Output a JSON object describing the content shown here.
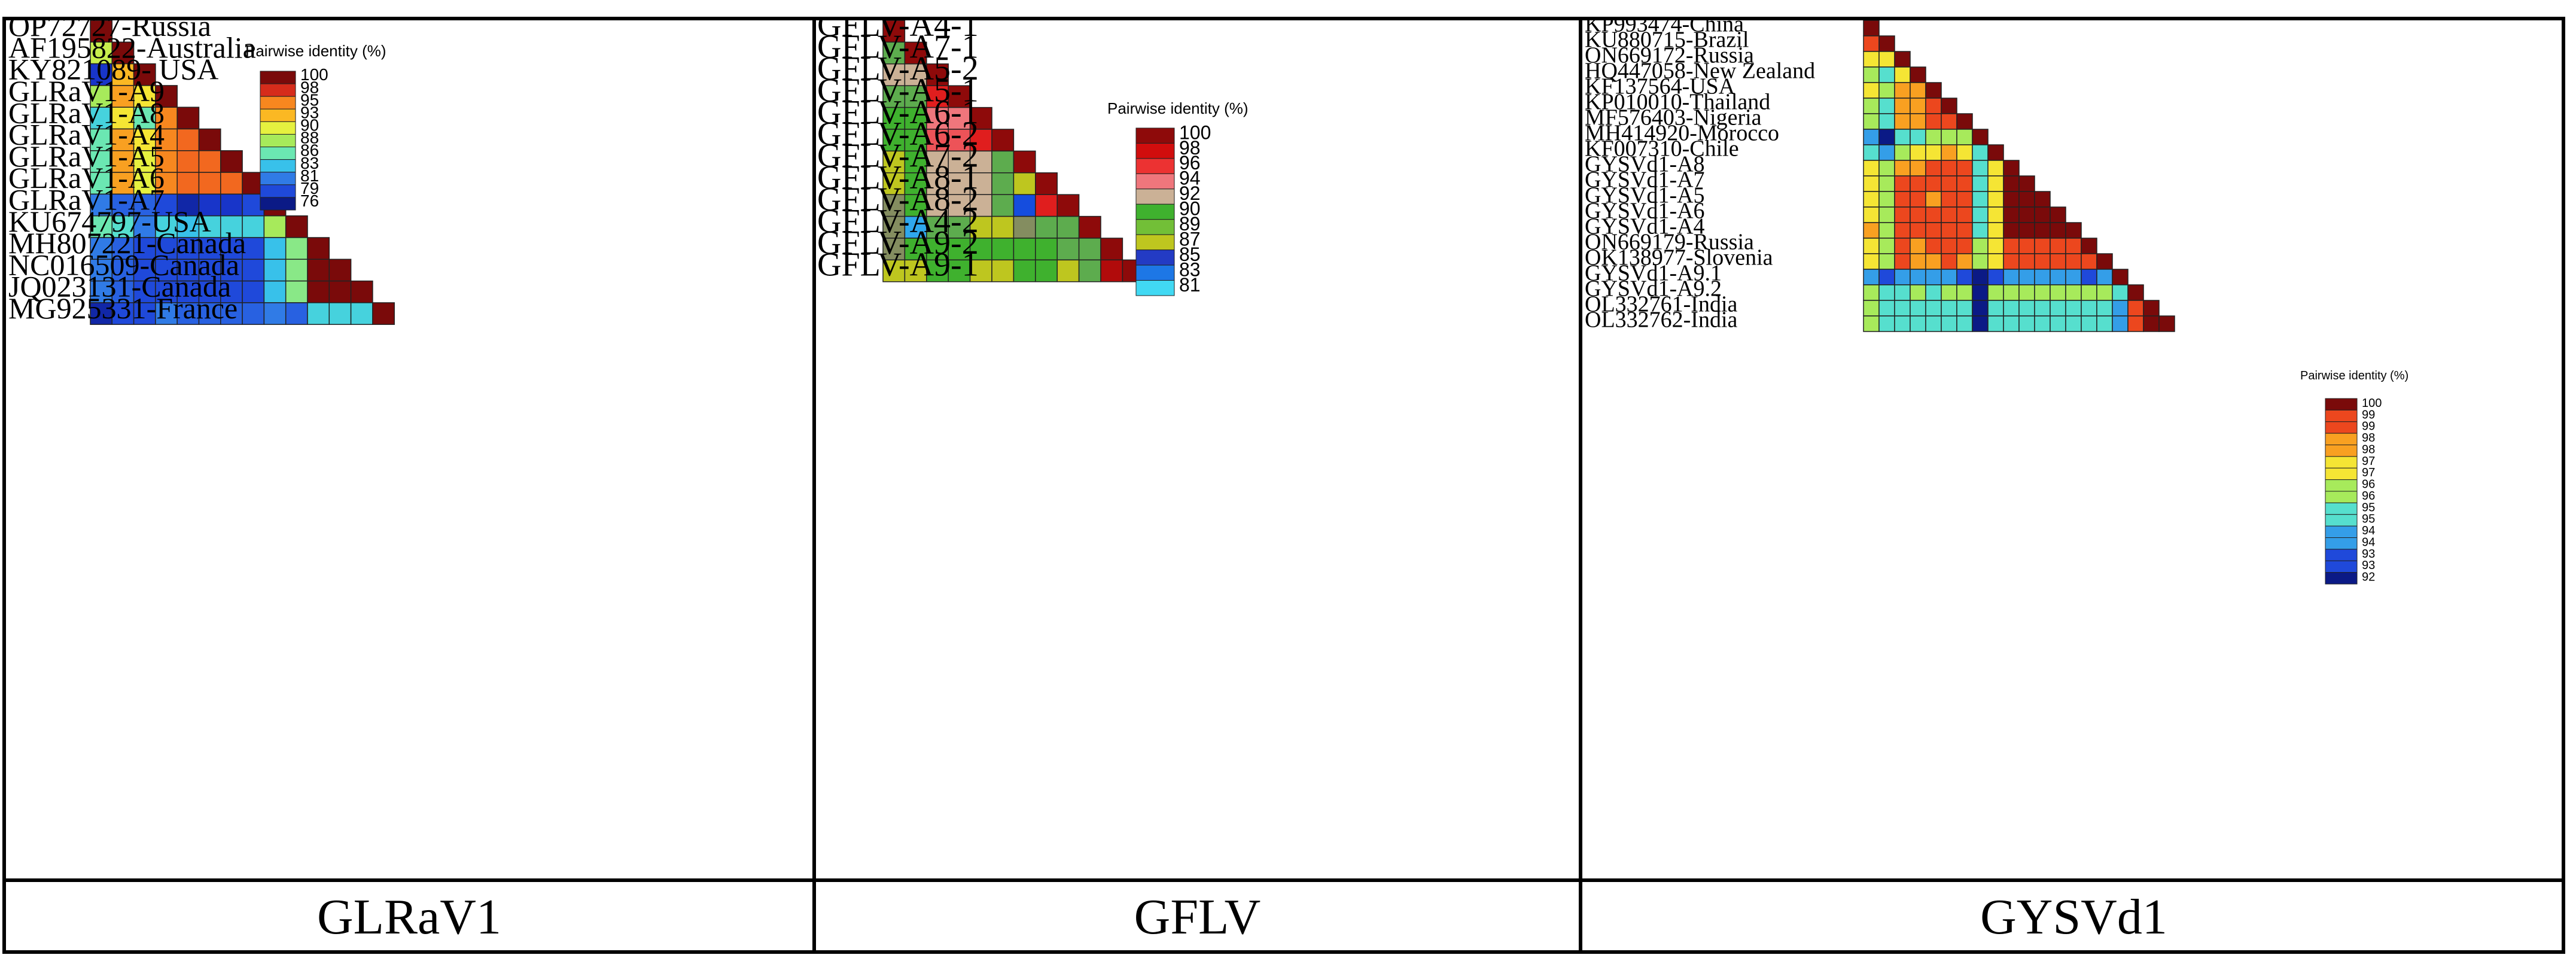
{
  "figure": {
    "captions": [
      "GLRaV1",
      "GFLV",
      "GYSVd1"
    ]
  },
  "chart_data": [
    {
      "type": "heatmap",
      "name": "GLRaV1",
      "title": "GLRaV1",
      "legend_title": "Pairwise identity (%)",
      "legend_position": "top-right",
      "scale_ticks": [
        100,
        98,
        95,
        93,
        90,
        88,
        86,
        83,
        81,
        79,
        76
      ],
      "labels": [
        "OP72727-Russia",
        "AF195822-Australia",
        "KY821089- USA",
        "GLRaV1-A9",
        "GLRaV1-A8",
        "GLRaV1-A4",
        "GLRaV1-A5",
        "GLRaV1-A6",
        "GLRaV1-A7",
        "KU674797-USA",
        "MH807221-Canada",
        "NC016509-Canada",
        "JQ023131-Canada",
        "MG925331-France"
      ],
      "matrix": [
        [
          100
        ],
        [
          89,
          100
        ],
        [
          78,
          93,
          100
        ],
        [
          88,
          94,
          91,
          100
        ],
        [
          84,
          91,
          86,
          95,
          100
        ],
        [
          86,
          94,
          91,
          95,
          96,
          100
        ],
        [
          86,
          94,
          90,
          95,
          96,
          96,
          100
        ],
        [
          86,
          94,
          90,
          95,
          96,
          96,
          96,
          100
        ],
        [
          81,
          80,
          80,
          79,
          77,
          78,
          78,
          79,
          100
        ],
        [
          86,
          85,
          81,
          84,
          83,
          84,
          84,
          84,
          88,
          100
        ],
        [
          81,
          80,
          79,
          79,
          79,
          79,
          79,
          79,
          83,
          87,
          100
        ],
        [
          81,
          80,
          79,
          79,
          79,
          79,
          79,
          79,
          83,
          87,
          100,
          100
        ],
        [
          81,
          80,
          79,
          79,
          79,
          79,
          79,
          79,
          83,
          87,
          100,
          100,
          100
        ],
        [
          77,
          79,
          79,
          81,
          80,
          80,
          80,
          80,
          81,
          80,
          84,
          84,
          84,
          100
        ]
      ],
      "color_scale": [
        "#0b1a86",
        "#1a3ad6",
        "#2f74e6",
        "#39c8ea",
        "#5fe6c4",
        "#a7ea5b",
        "#f3f23a",
        "#fbbd23",
        "#f7821f",
        "#e8331e",
        "#7a0a0a"
      ]
    },
    {
      "type": "heatmap",
      "name": "GFLV",
      "title": "GFLV",
      "legend_title": "Pairwise identity (%)",
      "legend_position": "top-right",
      "scale_ticks": [
        100,
        98,
        96,
        94,
        92,
        90,
        89,
        87,
        85,
        83,
        81
      ],
      "labels": [
        "GFLV-A4-1",
        "GFLV-A7-1",
        "GFLV-A5-2",
        "GFLV-A5-1",
        "GFLV-A6-1",
        "GFLV-A6-2",
        "GFLV-A7-2",
        "GFLV-A8-1",
        "GFLV-A8-2",
        "GFLV-A4-2",
        "GFLV-A9-2",
        "GFLV-A9-1"
      ],
      "matrix": [
        [
          100
        ],
        [
          91,
          100
        ],
        [
          92,
          92,
          100
        ],
        [
          91,
          91,
          97,
          100
        ],
        [
          90,
          90,
          94,
          94,
          100
        ],
        [
          90,
          90,
          95,
          95,
          97,
          100
        ],
        [
          87,
          90,
          92,
          92,
          92,
          91,
          100
        ],
        [
          87,
          90,
          92,
          92,
          92,
          91,
          87,
          100
        ],
        [
          86,
          90,
          92,
          92,
          92,
          91,
          84,
          97,
          100
        ],
        [
          86,
          82,
          91,
          91,
          87,
          87,
          86,
          91,
          91,
          100
        ],
        [
          86,
          90,
          90,
          90,
          90,
          90,
          90,
          90,
          91,
          91,
          100
        ],
        [
          87,
          87,
          90,
          90,
          87,
          87,
          90,
          90,
          87,
          91,
          99,
          100
        ]
      ],
      "color_scale": [
        "#41d9f3",
        "#1e7be7",
        "#0f2bd8",
        "#c9c61a",
        "#86c43a",
        "#26aa2a",
        "#f7b3b3",
        "#ee6b72",
        "#ec2b2b",
        "#d00b0b",
        "#8e0a0a"
      ]
    },
    {
      "type": "heatmap",
      "name": "GYSVd1",
      "title": "GYSVd1",
      "legend_title": "Pairwise identity (%)",
      "legend_position": "right",
      "scale_ticks": [
        100,
        99,
        99,
        98,
        98,
        97,
        97,
        96,
        96,
        95,
        95,
        94,
        94,
        93,
        93,
        92
      ],
      "labels": [
        "KP993474-China",
        "KU880715-Brazil",
        "ON669172-Russia",
        "HQ447058-New Zealand",
        "KF137564-USA",
        "KP010010-Thailand",
        "MF576403-Nigeria",
        "MH414920-Morocco",
        "KF007310-Chile",
        "GYSVd1-A8",
        "GYSVd1-A7",
        "GYSVd1-A5",
        "GYSVd1-A6",
        "GYSVd1-A4",
        "ON669179-Russia",
        "OK138977-Slovenia",
        "GYSVd1-A9.1",
        "GYSVd1-A9.2",
        "OL332761-India",
        "OL332762-India"
      ],
      "matrix": [
        [
          100
        ],
        [
          99,
          100
        ],
        [
          97,
          97,
          100
        ],
        [
          96,
          95,
          97,
          100
        ],
        [
          97,
          96,
          98,
          98,
          100
        ],
        [
          96,
          95,
          98,
          98,
          99,
          100
        ],
        [
          96,
          95,
          98,
          98,
          99,
          99,
          100
        ],
        [
          94,
          92,
          95,
          95,
          96,
          96,
          96,
          100
        ],
        [
          95,
          94,
          96,
          97,
          97,
          98,
          97,
          95,
          100
        ],
        [
          97,
          96,
          98,
          98,
          99,
          99,
          99,
          95,
          97,
          100
        ],
        [
          97,
          96,
          99,
          99,
          99,
          99,
          99,
          95,
          97,
          100,
          100
        ],
        [
          97,
          96,
          99,
          99,
          98,
          99,
          99,
          95,
          97,
          100,
          100,
          100
        ],
        [
          97,
          96,
          99,
          99,
          99,
          99,
          99,
          95,
          97,
          100,
          100,
          100,
          100
        ],
        [
          98,
          96,
          99,
          99,
          99,
          99,
          99,
          95,
          97,
          100,
          100,
          100,
          100,
          100
        ],
        [
          97,
          96,
          99,
          98,
          99,
          99,
          99,
          96,
          97,
          99,
          99,
          99,
          99,
          99,
          100
        ],
        [
          97,
          96,
          99,
          98,
          98,
          99,
          98,
          96,
          97,
          99,
          99,
          99,
          99,
          99,
          99,
          100
        ],
        [
          94,
          93,
          94,
          94,
          94,
          94,
          93,
          92,
          93,
          94,
          94,
          94,
          94,
          94,
          93,
          94,
          100
        ],
        [
          96,
          95,
          95,
          96,
          95,
          96,
          96,
          92,
          96,
          96,
          96,
          96,
          96,
          96,
          96,
          96,
          95,
          100
        ],
        [
          96,
          95,
          95,
          95,
          95,
          95,
          95,
          92,
          95,
          95,
          95,
          95,
          95,
          95,
          95,
          95,
          94,
          99,
          100
        ],
        [
          96,
          95,
          95,
          95,
          95,
          95,
          95,
          92,
          95,
          95,
          95,
          95,
          95,
          95,
          95,
          95,
          94,
          99,
          100,
          100
        ]
      ],
      "color_scale": [
        "#0b1a86",
        "#1a3ad6",
        "#2f74e6",
        "#39c8ea",
        "#5fe6c4",
        "#a7ea5b",
        "#f3f23a",
        "#fbbd23",
        "#f7821f",
        "#e8331e",
        "#7a0a0a"
      ]
    }
  ]
}
